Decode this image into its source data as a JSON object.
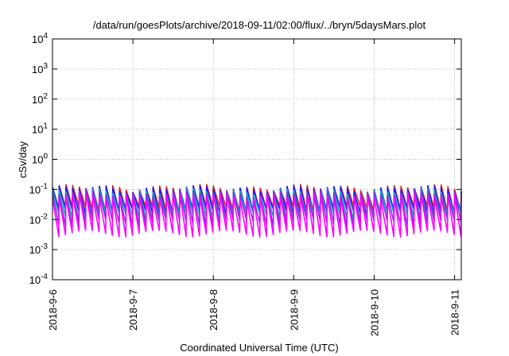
{
  "chart_data": {
    "type": "line",
    "title": "/data/run/goesPlots/archive/2018-09-11/02:00/flux/../bryn/5daysMars.plot",
    "xlabel": "Coordinated Universal Time (UTC)",
    "ylabel": "cSv/day",
    "x_range": [
      "2018-09-06T00:00",
      "2018-09-11T02:00"
    ],
    "y_range": [
      0.0001,
      10000
    ],
    "y_scale": "log",
    "grid": true,
    "x_ticks": [
      {
        "date": "2018-09-06",
        "label": "2018-9-6"
      },
      {
        "date": "2018-09-07",
        "label": "2018-9-7"
      },
      {
        "date": "2018-09-08",
        "label": "2018-9-8"
      },
      {
        "date": "2018-09-09",
        "label": "2018-9-9"
      },
      {
        "date": "2018-09-10",
        "label": "2018-9-10"
      },
      {
        "date": "2018-09-11",
        "label": "2018-9-11"
      }
    ],
    "y_ticks": [
      {
        "value": 0.0001,
        "base": "10",
        "exp": "-4"
      },
      {
        "value": 0.001,
        "base": "10",
        "exp": "-3"
      },
      {
        "value": 0.01,
        "base": "10",
        "exp": "-2"
      },
      {
        "value": 0.1,
        "base": "10",
        "exp": "-1"
      },
      {
        "value": 1,
        "base": "10",
        "exp": "0"
      },
      {
        "value": 10,
        "base": "10",
        "exp": "1"
      },
      {
        "value": 100,
        "base": "10",
        "exp": "2"
      },
      {
        "value": 1000,
        "base": "10",
        "exp": "3"
      },
      {
        "value": 10000,
        "base": "10",
        "exp": "4"
      }
    ],
    "sawtooth": {
      "period_hours": 2,
      "note_visible": "repeating drop-and-decay pattern",
      "series": [
        {
          "color": "#e02020",
          "peak": 0.115,
          "trough": 0.022
        },
        {
          "color": "#1a1aff",
          "peak": 0.105,
          "trough": 0.018
        },
        {
          "color": "#00b0b0",
          "peak": 0.085,
          "trough": 0.013
        },
        {
          "color": "#8a2be2",
          "peak": 0.075,
          "trough": 0.008
        },
        {
          "color": "#ff00ff",
          "peak": 0.06,
          "trough": 0.0035
        }
      ]
    }
  }
}
